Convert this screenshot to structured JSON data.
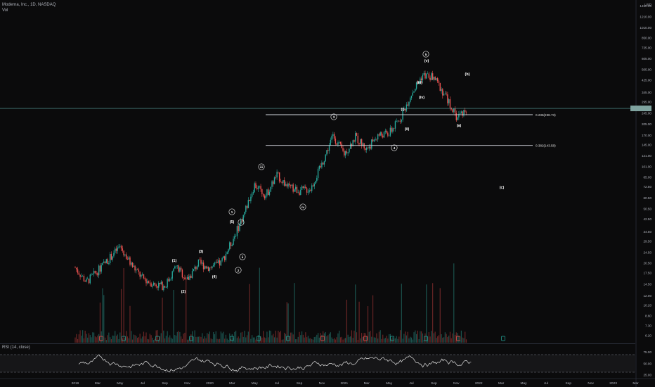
{
  "header": {
    "symbol_line": "Moderna, Inc., 1D, NASDAQ",
    "sub_line": "Vol"
  },
  "currency": {
    "top": "1450.00",
    "unit": "USD"
  },
  "price_panel": {
    "current_price_tag": "",
    "y_ticks": [
      "1450.00",
      "1210.00",
      "1010.00",
      "850.00",
      "725.00",
      "605.00",
      "505.00",
      "425.00",
      "345.00",
      "295.00",
      "245.00",
      "205.00",
      "170.00",
      "145.00",
      "121.00",
      "101.00",
      "85.00",
      "72.50",
      "60.50",
      "50.50",
      "42.50",
      "34.50",
      "29.50",
      "24.50",
      "20.50",
      "17.50",
      "14.50",
      "12.00",
      "10.20",
      "8.60",
      "7.30",
      "6.20"
    ]
  },
  "rsi_panel": {
    "label": "RSI (14, close)",
    "y_ticks": [
      "75.00",
      "50.00",
      "25.00"
    ],
    "upper": 70,
    "lower": 30
  },
  "x_axis": {
    "labels": [
      "2019",
      "Mar",
      "May",
      "Jul",
      "Sep",
      "Nov",
      "2020",
      "Mar",
      "May",
      "Jul",
      "Sep",
      "Nov",
      "2021",
      "Mar",
      "May",
      "Jul",
      "Sep",
      "Nov",
      "2022",
      "Mar",
      "May",
      "Jul",
      "Sep",
      "Nov",
      "2023",
      "Mar"
    ]
  },
  "fib_levels": [
    {
      "label": "0.236(238.73)",
      "value": 238.73
    },
    {
      "label": "0.382(143.58)",
      "value": 143.58
    }
  ],
  "wave_labels": [
    "(1)",
    "(2)",
    "(3)",
    "(4)",
    "(5)",
    "1",
    "2",
    "i",
    "ii",
    "iii",
    "iv",
    "3",
    "4",
    "(i)",
    "(ii)",
    "(iii)",
    "(iv)",
    "(v)",
    "5",
    "(a)",
    "(b)",
    "(c)"
  ],
  "colors": {
    "up": "#26a69a",
    "down": "#ef5350",
    "rsi": "#e0e0e0",
    "price_line": "#5aa4a0",
    "background": "#0b0b0c"
  },
  "chart_data": {
    "type": "line",
    "title": "Moderna, Inc., 1D, NASDAQ",
    "xlabel": "",
    "ylabel": "USD",
    "yscale": "log",
    "ylim": [
      5.5,
      1450
    ],
    "xlim": [
      "2019-01",
      "2023-04"
    ],
    "series": [
      {
        "values_approx": [
          [
            "2019-01",
            19.0
          ],
          [
            "2019-02",
            15.0
          ],
          [
            "2019-03",
            18.0
          ],
          [
            "2019-04",
            22.0
          ],
          [
            "2019-05",
            27.0
          ],
          [
            "2019-06",
            20.0
          ],
          [
            "2019-07",
            16.0
          ],
          [
            "2019-08",
            14.5
          ],
          [
            "2019-09",
            14.0
          ],
          [
            "2019-10",
            19.5
          ],
          [
            "2019-11",
            15.5
          ],
          [
            "2019-12",
            20.5
          ],
          [
            "2020-01",
            19.0
          ],
          [
            "2020-02",
            20.5
          ],
          [
            "2020-03",
            29.5
          ],
          [
            "2020-04",
            45.0
          ],
          [
            "2020-05",
            75.0
          ],
          [
            "2020-06",
            63.0
          ],
          [
            "2020-07",
            88.0
          ],
          [
            "2020-08",
            72.0
          ],
          [
            "2020-09",
            68.0
          ],
          [
            "2020-10",
            70.0
          ],
          [
            "2020-11",
            105.0
          ],
          [
            "2020-12",
            170.0
          ],
          [
            "2021-01",
            125.0
          ],
          [
            "2021-02",
            165.0
          ],
          [
            "2021-03",
            135.0
          ],
          [
            "2021-04",
            170.0
          ],
          [
            "2021-05",
            175.0
          ],
          [
            "2021-06",
            225.0
          ],
          [
            "2021-07",
            340.0
          ],
          [
            "2021-08",
            460.0
          ],
          [
            "2021-09",
            440.0
          ],
          [
            "2021-10",
            330.0
          ],
          [
            "2021-11",
            230.0
          ],
          [
            "2021-12",
            265.0
          ]
        ]
      }
    ]
  }
}
